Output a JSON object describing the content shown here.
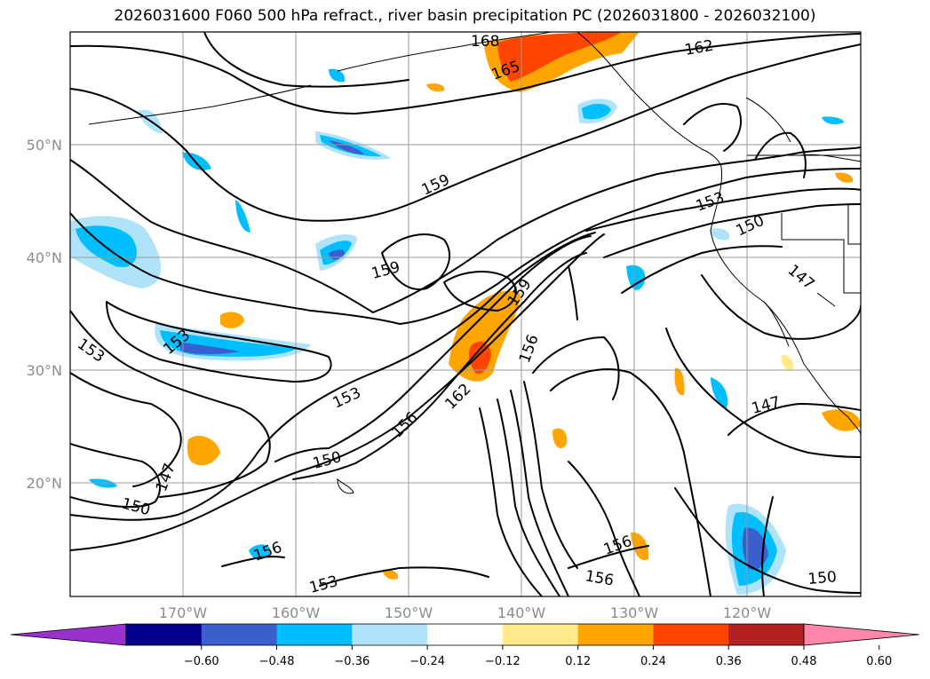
{
  "title": "2026031600 F060 500 hPa refract., river basin precipitation PC (2026031800 - 2026032100)",
  "lat_labels": [
    "50°N",
    "40°N",
    "30°N",
    "20°N"
  ],
  "lon_labels": [
    "170°W",
    "160°W",
    "150°W",
    "140°W",
    "130°W",
    "120°W"
  ],
  "contour_labels": [
    "168",
    "165",
    "162",
    "159",
    "159",
    "159",
    "156",
    "156",
    "153",
    "153",
    "153",
    "153",
    "150",
    "150",
    "150",
    "150",
    "147",
    "147",
    "147",
    "162",
    "156",
    "156"
  ],
  "colorbar": {
    "ticks": [
      "−0.60",
      "−0.48",
      "−0.36",
      "−0.24",
      "−0.12",
      "0.12",
      "0.24",
      "0.36",
      "0.48",
      "0.60"
    ],
    "colors": [
      "#9932cc",
      "#00008b",
      "#3a5fcd",
      "#00bfff",
      "#aee3fa",
      "#ffffff",
      "#ffeb8c",
      "#ffa500",
      "#ff4500",
      "#b22222",
      "#ff88aa"
    ]
  }
}
